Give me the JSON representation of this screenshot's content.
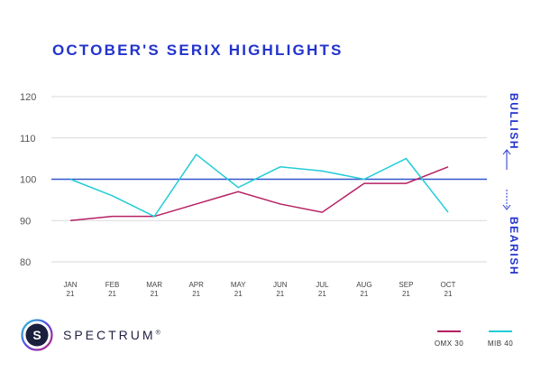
{
  "title": "OCTOBER'S SERIX HIGHLIGHTS",
  "brand": {
    "name": "SPECTRUM",
    "mark": "®",
    "logo_letter": "S"
  },
  "side_labels": {
    "bullish": "BULLISH",
    "bearish": "BEARISH"
  },
  "colors": {
    "title": "#2233cc",
    "baseline": "#3355cc",
    "omx": "#b52063",
    "mib": "#22ccd8",
    "grid": "#d9d9d9"
  },
  "chart_data": {
    "type": "line",
    "title": "OCTOBER'S SERIX HIGHLIGHTS",
    "categories": [
      "JAN\n21",
      "FEB\n21",
      "MAR\n21",
      "APR\n21",
      "MAY\n21",
      "JUN\n21",
      "JUL\n21",
      "AUG\n21",
      "SEP\n21",
      "OCT\n21"
    ],
    "series": [
      {
        "name": "OMX 30",
        "values": [
          90,
          91,
          91,
          94,
          97,
          94,
          92,
          99,
          99,
          103
        ]
      },
      {
        "name": "MIB 40",
        "values": [
          100,
          96,
          91,
          106,
          98,
          103,
          102,
          100,
          105,
          92
        ]
      }
    ],
    "baseline": 100,
    "ylim": [
      80,
      120
    ],
    "yticks": [
      80,
      90,
      100,
      110,
      120
    ],
    "grid": true,
    "legend": "bottom-right"
  }
}
